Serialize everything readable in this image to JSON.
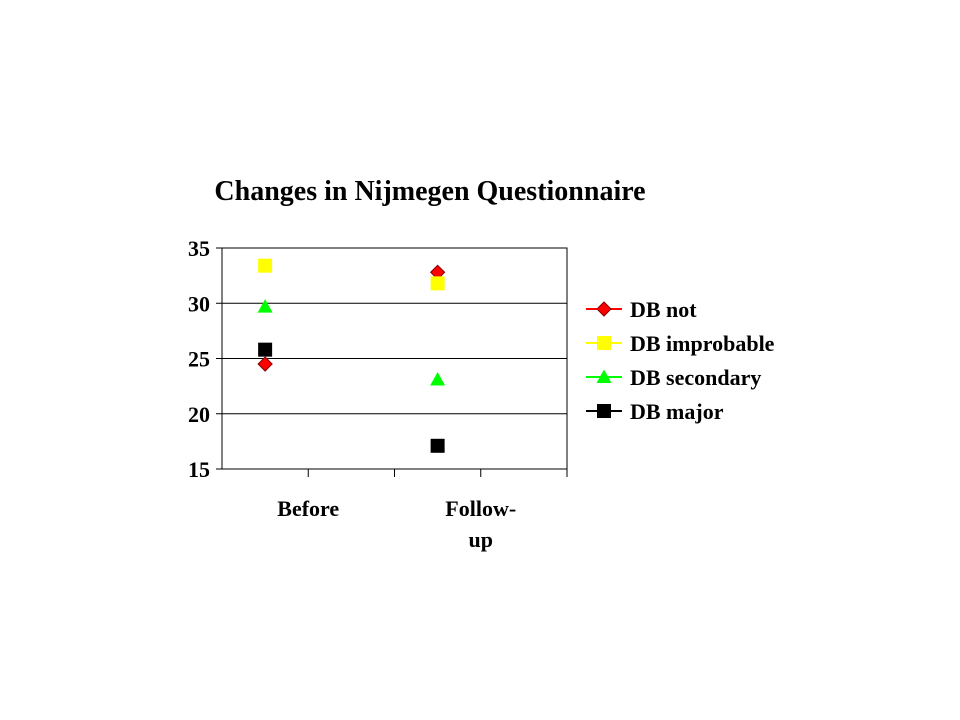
{
  "chart_data": {
    "type": "scatter",
    "title": "Changes in Nijmegen Questionnaire",
    "xlabel": "",
    "ylabel": "",
    "categories": [
      "Before",
      "Follow-up"
    ],
    "category_label_lines": [
      [
        "Before"
      ],
      [
        "Follow-",
        "up"
      ]
    ],
    "ylim": [
      15,
      35
    ],
    "yticks": [
      15,
      20,
      25,
      30,
      35
    ],
    "grid": true,
    "legend_position": "right",
    "series": [
      {
        "name": "DB not",
        "values": [
          24.5,
          32.8
        ],
        "color": "#ff0000",
        "marker": "diamond"
      },
      {
        "name": "DB improbable",
        "values": [
          33.4,
          31.8
        ],
        "color": "#ffff00",
        "marker": "square"
      },
      {
        "name": "DB secondary",
        "values": [
          29.7,
          23.1
        ],
        "color": "#00ff00",
        "marker": "triangle"
      },
      {
        "name": "DB major",
        "values": [
          25.8,
          17.1
        ],
        "color": "#000000",
        "marker": "square"
      }
    ]
  }
}
